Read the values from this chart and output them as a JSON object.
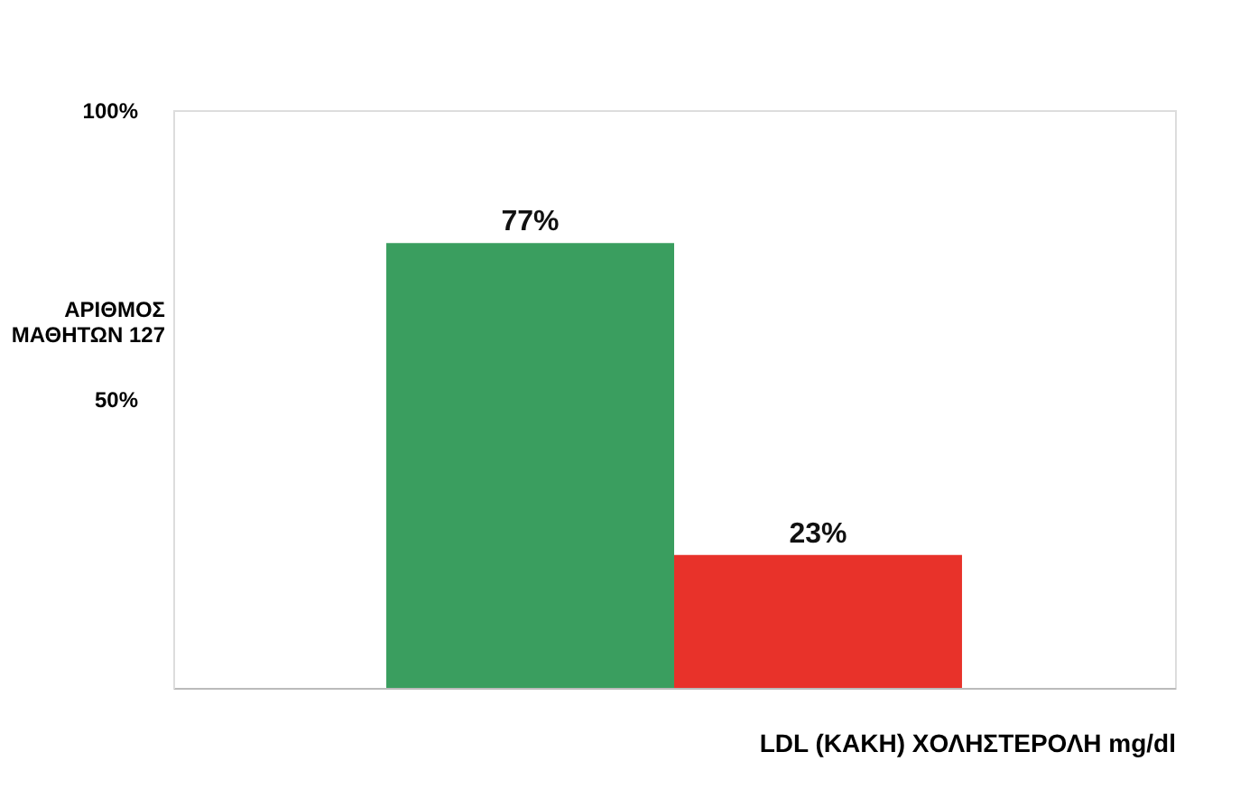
{
  "chart_data": {
    "type": "bar",
    "ylabel": "ΑΡΙΘΜΟΣ ΜΑΘΗΤΩΝ 127",
    "xlabel": "LDL (ΚΑΚΗ) ΧΟΛΗΣΤΕΡΟΛΗ mg/dl",
    "categories": [
      null,
      null
    ],
    "values": [
      77,
      23
    ],
    "colors": [
      "#3a9e5f",
      "#e8322a"
    ],
    "ylim": [
      0,
      100
    ],
    "yticks": [
      {
        "value": 50,
        "label": "50%"
      },
      {
        "value": 100,
        "label": "100%"
      }
    ],
    "value_labels": [
      "77%",
      "23%"
    ],
    "grid": false
  }
}
